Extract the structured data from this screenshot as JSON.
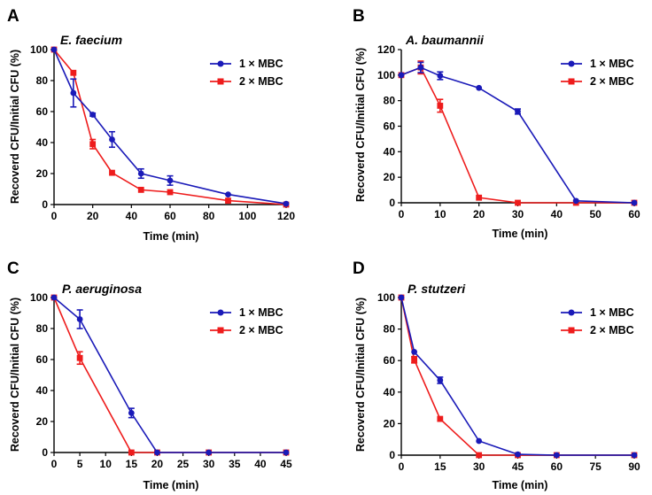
{
  "colors": {
    "series1": "#1a1ab8",
    "series2": "#ee1c1c",
    "axis": "#000000"
  },
  "chart_data": [
    {
      "panel": "A",
      "type": "line",
      "title": "E. faecium",
      "xlabel": "Time (min)",
      "ylabel": "Recoverd CFU/Initial CFU (%)",
      "xlim": [
        0,
        120
      ],
      "ylim": [
        0,
        100
      ],
      "xticks": [
        0,
        20,
        40,
        60,
        80,
        100,
        120
      ],
      "yticks": [
        0,
        20,
        40,
        60,
        80,
        100
      ],
      "legend_position": "top-right",
      "series": [
        {
          "name": "1 × MBC",
          "marker": "circle",
          "color": "#1a1ab8",
          "x": [
            0,
            10,
            20,
            30,
            45,
            60,
            90,
            120
          ],
          "y": [
            100,
            72,
            58,
            42,
            20,
            15.5,
            6.5,
            0.5
          ],
          "err": [
            0,
            9,
            1,
            5,
            3,
            3,
            0,
            0
          ]
        },
        {
          "name": "2 × MBC",
          "marker": "square",
          "color": "#ee1c1c",
          "x": [
            0,
            10,
            20,
            30,
            45,
            60,
            90,
            120
          ],
          "y": [
            100,
            85,
            39,
            20.5,
            9.5,
            8,
            2.5,
            0
          ],
          "err": [
            0,
            0,
            3,
            0,
            0,
            0,
            0,
            0
          ]
        }
      ]
    },
    {
      "panel": "B",
      "type": "line",
      "title": "A. baumannii",
      "xlabel": "Time (min)",
      "ylabel": "Recoverd CFU/Initial CFU (%)",
      "xlim": [
        0,
        60
      ],
      "ylim": [
        0,
        120
      ],
      "xticks": [
        0,
        10,
        20,
        30,
        40,
        50,
        60
      ],
      "yticks": [
        0,
        20,
        40,
        60,
        80,
        100,
        120
      ],
      "legend_position": "top-right",
      "series": [
        {
          "name": "1 × MBC",
          "marker": "circle",
          "color": "#1a1ab8",
          "x": [
            0,
            5,
            10,
            20,
            30,
            45,
            60
          ],
          "y": [
            100,
            106,
            99.5,
            90,
            71.5,
            1.5,
            0
          ],
          "err": [
            0,
            4,
            3,
            0,
            2,
            0,
            0
          ]
        },
        {
          "name": "2 × MBC",
          "marker": "square",
          "color": "#ee1c1c",
          "x": [
            0,
            5,
            10,
            20,
            30,
            45,
            60
          ],
          "y": [
            100,
            106,
            76,
            4,
            0,
            0,
            0
          ],
          "err": [
            0,
            5,
            5,
            0,
            0,
            0,
            0
          ]
        }
      ]
    },
    {
      "panel": "C",
      "type": "line",
      "title": "P. aeruginosa",
      "xlabel": "Time (min)",
      "ylabel": "Recoverd CFU/Initial CFU (%)",
      "xlim": [
        0,
        45
      ],
      "ylim": [
        0,
        100
      ],
      "xticks": [
        0,
        5,
        10,
        15,
        20,
        25,
        30,
        35,
        40,
        45
      ],
      "yticks": [
        0,
        20,
        40,
        60,
        80,
        100
      ],
      "legend_position": "top-right",
      "series": [
        {
          "name": "1 × MBC",
          "marker": "circle",
          "color": "#1a1ab8",
          "x": [
            0,
            5,
            15,
            20,
            30,
            45
          ],
          "y": [
            100,
            86,
            25.5,
            0,
            0,
            0
          ],
          "err": [
            0,
            6,
            3,
            0,
            0,
            0
          ]
        },
        {
          "name": "2 × MBC",
          "marker": "square",
          "color": "#ee1c1c",
          "x": [
            0,
            5,
            15,
            20,
            30,
            45
          ],
          "y": [
            100,
            61,
            0,
            0,
            0,
            0
          ],
          "err": [
            0,
            4,
            0,
            0,
            0,
            0
          ]
        }
      ]
    },
    {
      "panel": "D",
      "type": "line",
      "title": "P. stutzeri",
      "xlabel": "Time (min)",
      "ylabel": "Recoverd CFU/Initial CFU (%)",
      "xlim": [
        0,
        90
      ],
      "ylim": [
        0,
        100
      ],
      "xticks": [
        0,
        15,
        30,
        45,
        60,
        75,
        90
      ],
      "yticks": [
        0,
        20,
        40,
        60,
        80,
        100
      ],
      "legend_position": "top-right",
      "series": [
        {
          "name": "1 × MBC",
          "marker": "circle",
          "color": "#1a1ab8",
          "x": [
            0,
            5,
            15,
            30,
            45,
            60,
            90
          ],
          "y": [
            100,
            65.5,
            47.5,
            9,
            0.5,
            0,
            0
          ],
          "err": [
            0,
            0,
            2,
            0,
            0,
            0,
            0
          ]
        },
        {
          "name": "2 × MBC",
          "marker": "square",
          "color": "#ee1c1c",
          "x": [
            0,
            5,
            15,
            30,
            45,
            60,
            90
          ],
          "y": [
            100,
            60.5,
            23,
            0,
            0,
            0,
            0
          ],
          "err": [
            0,
            2,
            0,
            0,
            0,
            0,
            0
          ]
        }
      ]
    }
  ]
}
